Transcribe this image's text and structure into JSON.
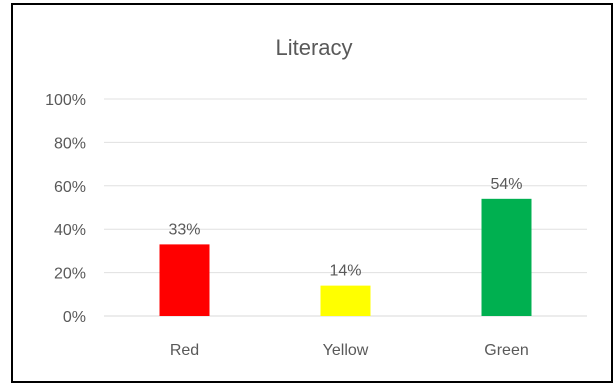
{
  "chart_data": {
    "type": "bar",
    "title": "Literacy",
    "categories": [
      "Red",
      "Yellow",
      "Green"
    ],
    "values": [
      33,
      14,
      54
    ],
    "data_labels": [
      "33%",
      "14%",
      "54%"
    ],
    "bar_colors": [
      "#ff0000",
      "#ffff00",
      "#00b050"
    ],
    "ylim": [
      0,
      100
    ],
    "yticks": [
      0,
      20,
      40,
      60,
      80,
      100
    ],
    "ytick_labels": [
      "0%",
      "20%",
      "40%",
      "60%",
      "80%",
      "100%"
    ],
    "xlabel": "",
    "ylabel": "",
    "grid": true,
    "legend": "none"
  }
}
